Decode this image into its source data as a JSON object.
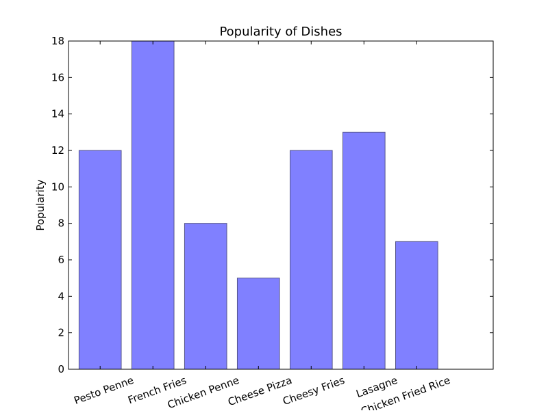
{
  "chart_data": {
    "type": "bar",
    "title": "Popularity of Dishes",
    "xlabel": "",
    "ylabel": "Popularity",
    "categories": [
      "Pesto Penne",
      "French Fries",
      "Chicken Penne",
      "Cheese Pizza",
      "Cheesy Fries",
      "Lasagne",
      "Chicken Fried Rice"
    ],
    "values": [
      12,
      18,
      8,
      5,
      12,
      13,
      7
    ],
    "ylim": [
      0,
      18
    ],
    "yticks": [
      "0",
      "2",
      "4",
      "6",
      "8",
      "10",
      "12",
      "14",
      "16",
      "18"
    ],
    "grid": false,
    "bar_color": "#8080ff",
    "bar_edge_color": "#55558a"
  }
}
